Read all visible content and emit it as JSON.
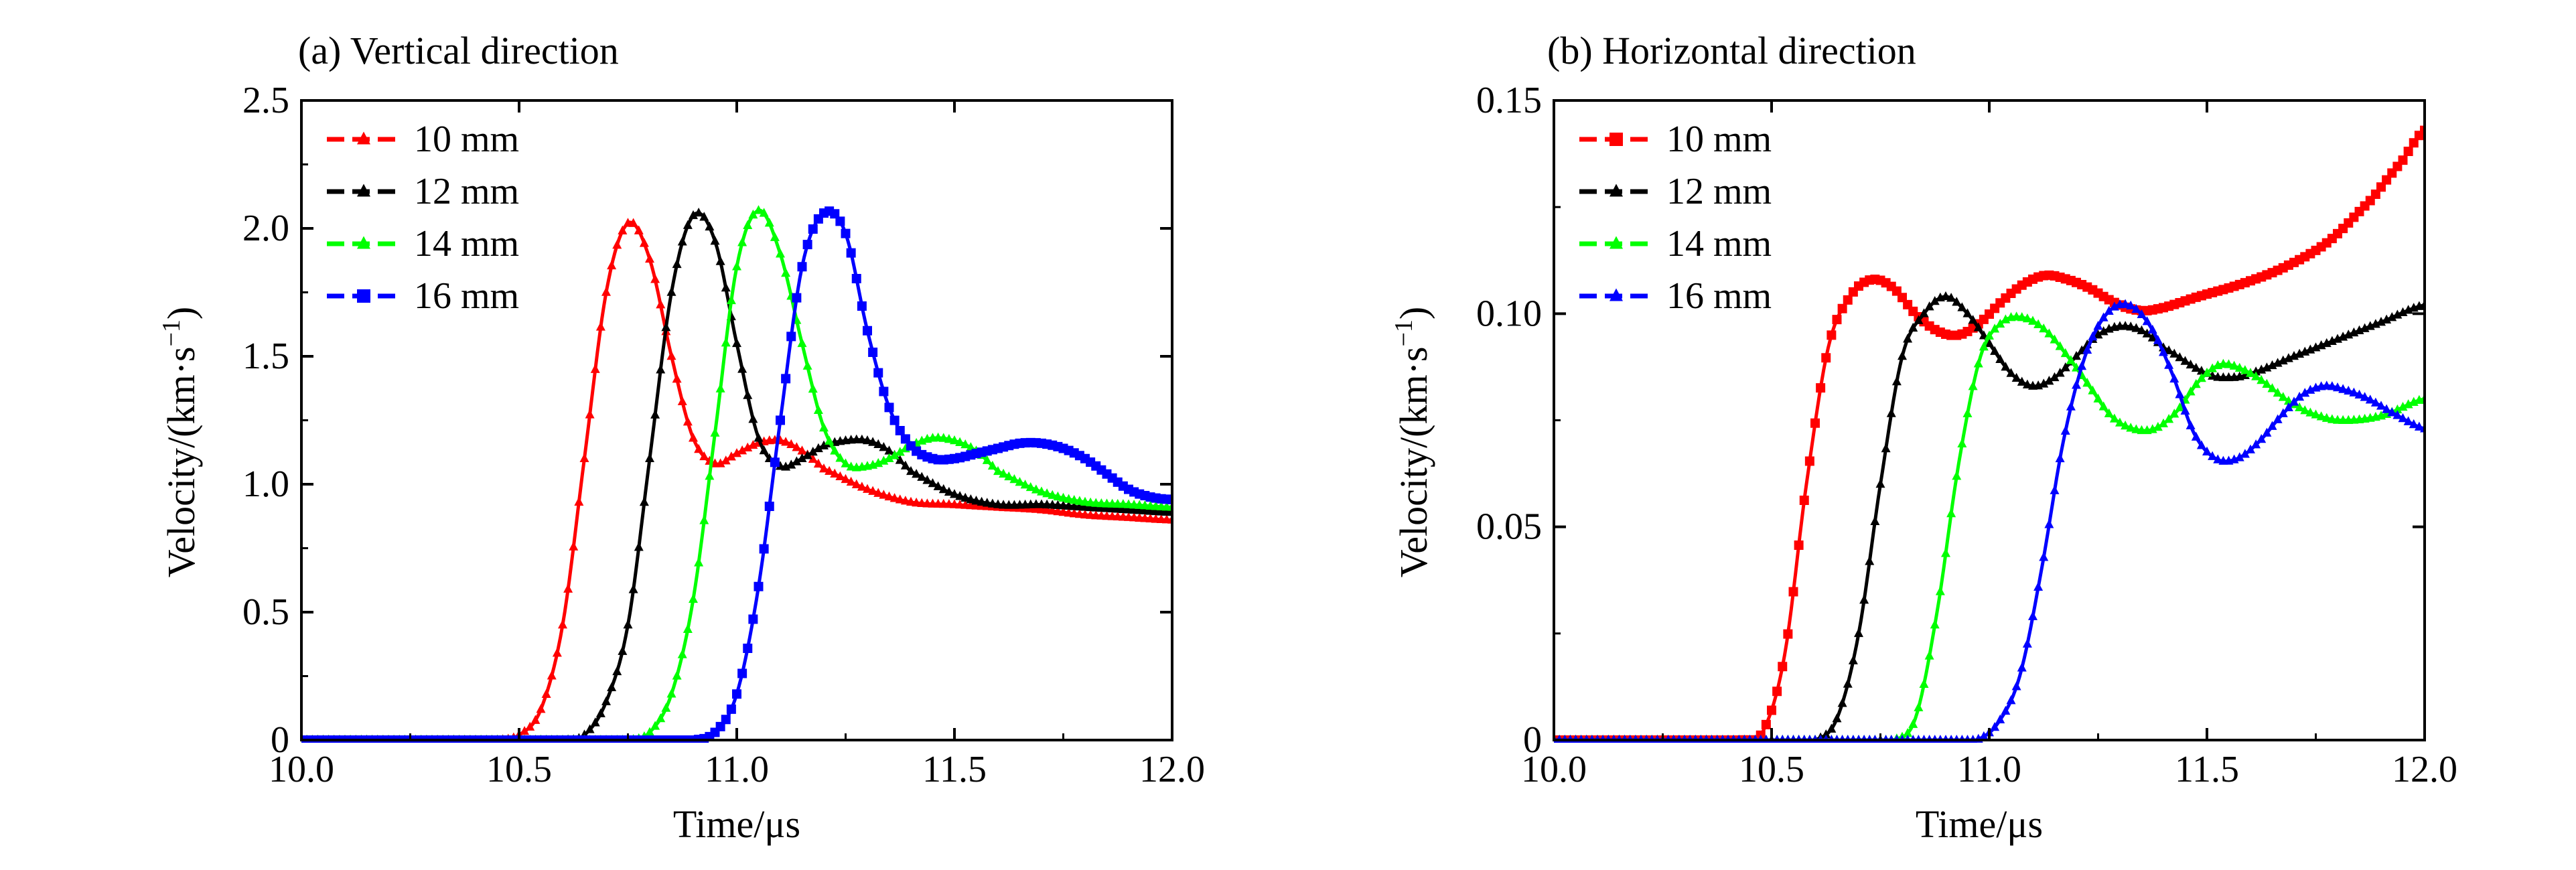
{
  "chart_data": [
    {
      "type": "line",
      "title": "(a) Vertical direction",
      "xlabel": "Time/μs",
      "ylabel_main": "Velocity/(km·s",
      "ylabel_sup": "−1",
      "ylabel_close": ")",
      "xlim": [
        10.0,
        12.0
      ],
      "ylim": [
        0,
        2.5
      ],
      "xticks": [
        10.0,
        10.5,
        11.0,
        11.5,
        12.0
      ],
      "xtick_labels": [
        "10.0",
        "10.5",
        "11.0",
        "11.5",
        "12.0"
      ],
      "yticks": [
        0,
        0.5,
        1.0,
        1.5,
        2.0,
        2.5
      ],
      "ytick_labels": [
        "0",
        "0.5",
        "1.0",
        "1.5",
        "2.0",
        "2.5"
      ],
      "grid": false,
      "legend_position": "top-left",
      "series": [
        {
          "name": "10 mm",
          "color": "#ff0000",
          "marker": "triangle",
          "x": [
            10.0,
            10.45,
            10.5,
            10.55,
            10.6,
            10.65,
            10.7,
            10.75,
            10.8,
            10.85,
            10.9,
            10.95,
            11.0,
            11.05,
            11.1,
            11.15,
            11.2,
            11.3,
            11.4,
            11.5,
            11.6,
            11.7,
            11.8,
            11.9,
            12.0
          ],
          "y": [
            0,
            0,
            0.02,
            0.12,
            0.45,
            1.1,
            1.75,
            2.02,
            1.88,
            1.5,
            1.18,
            1.08,
            1.12,
            1.16,
            1.17,
            1.13,
            1.06,
            0.98,
            0.93,
            0.92,
            0.91,
            0.9,
            0.88,
            0.87,
            0.86
          ]
        },
        {
          "name": "12 mm",
          "color": "#000000",
          "marker": "triangle",
          "x": [
            10.0,
            10.6,
            10.65,
            10.7,
            10.75,
            10.8,
            10.85,
            10.9,
            10.95,
            11.0,
            11.05,
            11.1,
            11.15,
            11.2,
            11.25,
            11.3,
            11.35,
            11.4,
            11.5,
            11.6,
            11.7,
            11.8,
            11.9,
            12.0
          ],
          "y": [
            0,
            0,
            0.02,
            0.15,
            0.45,
            1.1,
            1.75,
            2.05,
            1.95,
            1.55,
            1.18,
            1.07,
            1.1,
            1.15,
            1.17,
            1.17,
            1.13,
            1.05,
            0.96,
            0.92,
            0.92,
            0.91,
            0.9,
            0.89
          ]
        },
        {
          "name": "14 mm",
          "color": "#00ff00",
          "marker": "triangle",
          "x": [
            10.0,
            10.75,
            10.8,
            10.85,
            10.9,
            10.95,
            11.0,
            11.05,
            11.1,
            11.15,
            11.2,
            11.25,
            11.3,
            11.35,
            11.4,
            11.45,
            11.5,
            11.55,
            11.6,
            11.7,
            11.8,
            11.9,
            12.0
          ],
          "y": [
            0,
            0,
            0.03,
            0.18,
            0.55,
            1.2,
            1.85,
            2.07,
            1.9,
            1.55,
            1.22,
            1.08,
            1.07,
            1.1,
            1.15,
            1.18,
            1.17,
            1.13,
            1.05,
            0.97,
            0.93,
            0.92,
            0.91
          ]
        },
        {
          "name": "16 mm",
          "color": "#0000ff",
          "marker": "square",
          "x": [
            10.0,
            10.9,
            10.95,
            11.0,
            11.05,
            11.1,
            11.15,
            11.2,
            11.25,
            11.3,
            11.35,
            11.4,
            11.45,
            11.5,
            11.55,
            11.6,
            11.65,
            11.7,
            11.75,
            11.8,
            11.85,
            11.9,
            11.95,
            12.0
          ],
          "y": [
            0,
            0,
            0.03,
            0.18,
            0.6,
            1.25,
            1.85,
            2.06,
            1.98,
            1.6,
            1.3,
            1.15,
            1.1,
            1.1,
            1.12,
            1.14,
            1.16,
            1.16,
            1.14,
            1.1,
            1.04,
            0.98,
            0.95,
            0.94
          ]
        }
      ]
    },
    {
      "type": "line",
      "title": "(b) Horizontal direction",
      "xlabel": "Time/μs",
      "ylabel_main": "Velocity/(km·s",
      "ylabel_sup": "−1",
      "ylabel_close": ")",
      "xlim": [
        10.0,
        12.0
      ],
      "ylim": [
        0,
        0.15
      ],
      "xticks": [
        10.0,
        10.5,
        11.0,
        11.5,
        12.0
      ],
      "xtick_labels": [
        "10.0",
        "10.5",
        "11.0",
        "11.5",
        "12.0"
      ],
      "yticks": [
        0,
        0.05,
        0.1,
        0.15
      ],
      "ytick_labels": [
        "0",
        "0.05",
        "0.10",
        "0.15"
      ],
      "grid": false,
      "legend_position": "top-left",
      "series": [
        {
          "name": "10 mm",
          "color": "#ff0000",
          "marker": "square",
          "x": [
            10.0,
            10.43,
            10.48,
            10.53,
            10.58,
            10.63,
            10.68,
            10.73,
            10.78,
            10.83,
            10.88,
            10.93,
            10.98,
            11.03,
            11.08,
            11.13,
            11.18,
            11.23,
            11.28,
            11.33,
            11.38,
            11.48,
            11.58,
            11.68,
            11.78,
            11.88,
            11.95,
            12.0
          ],
          "y": [
            0,
            0,
            0.002,
            0.02,
            0.06,
            0.092,
            0.104,
            0.108,
            0.106,
            0.1,
            0.096,
            0.095,
            0.098,
            0.103,
            0.107,
            0.109,
            0.108,
            0.106,
            0.103,
            0.101,
            0.101,
            0.104,
            0.107,
            0.111,
            0.117,
            0.127,
            0.136,
            0.143
          ]
        },
        {
          "name": "12 mm",
          "color": "#000000",
          "marker": "triangle",
          "x": [
            10.0,
            10.6,
            10.65,
            10.7,
            10.75,
            10.8,
            10.85,
            10.9,
            10.95,
            11.0,
            11.05,
            11.1,
            11.15,
            11.2,
            11.25,
            11.3,
            11.35,
            11.4,
            11.5,
            11.55,
            11.6,
            11.7,
            11.8,
            11.9,
            12.0
          ],
          "y": [
            0,
            0,
            0.005,
            0.025,
            0.06,
            0.09,
            0.1,
            0.104,
            0.1,
            0.093,
            0.086,
            0.083,
            0.085,
            0.09,
            0.095,
            0.097,
            0.096,
            0.092,
            0.086,
            0.085,
            0.086,
            0.09,
            0.094,
            0.098,
            0.102
          ]
        },
        {
          "name": "14 mm",
          "color": "#00ff00",
          "marker": "triangle",
          "x": [
            10.0,
            10.78,
            10.83,
            10.88,
            10.93,
            10.98,
            11.03,
            11.08,
            11.13,
            11.18,
            11.23,
            11.28,
            11.33,
            11.38,
            11.43,
            11.48,
            11.53,
            11.58,
            11.63,
            11.68,
            11.73,
            11.8,
            11.9,
            12.0
          ],
          "y": [
            0,
            0,
            0.005,
            0.03,
            0.065,
            0.09,
            0.098,
            0.099,
            0.096,
            0.09,
            0.083,
            0.076,
            0.073,
            0.073,
            0.077,
            0.084,
            0.088,
            0.087,
            0.084,
            0.08,
            0.077,
            0.075,
            0.076,
            0.08
          ]
        },
        {
          "name": "16 mm",
          "color": "#0000ff",
          "marker": "triangle",
          "x": [
            10.0,
            10.97,
            11.02,
            11.07,
            11.12,
            11.17,
            11.22,
            11.27,
            11.32,
            11.37,
            11.42,
            11.47,
            11.52,
            11.57,
            11.62,
            11.67,
            11.72,
            11.77,
            11.82,
            11.87,
            11.92,
            12.0
          ],
          "y": [
            0,
            0,
            0.004,
            0.015,
            0.04,
            0.07,
            0.09,
            0.1,
            0.102,
            0.097,
            0.086,
            0.072,
            0.066,
            0.066,
            0.07,
            0.076,
            0.081,
            0.083,
            0.082,
            0.08,
            0.077,
            0.073
          ]
        }
      ]
    }
  ]
}
